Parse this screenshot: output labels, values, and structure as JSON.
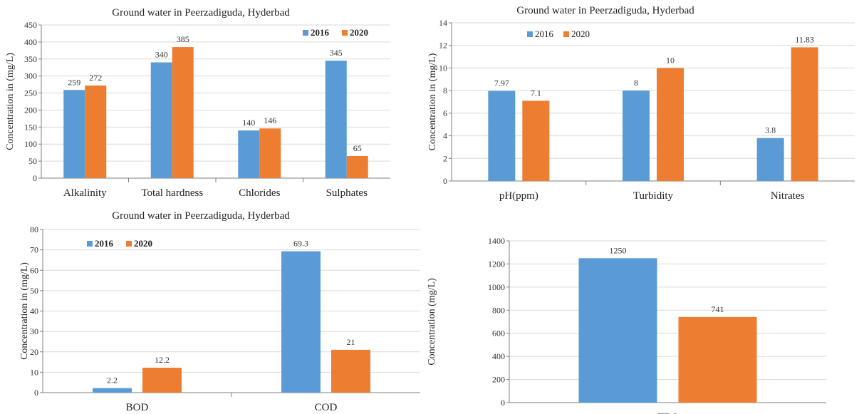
{
  "colors": {
    "s2016": "#5b9bd5",
    "s2020": "#ed7d31"
  },
  "chart_data": [
    {
      "type": "bar",
      "title": "Ground water in Peerzadiguda, Hyderbad",
      "ylabel": "Concentration in (mg/L)",
      "xlabel": "",
      "categories": [
        "Alkalinity",
        "Total hardness",
        "Chlorides",
        "Sulphates"
      ],
      "series": [
        {
          "name": "2016",
          "values": [
            259,
            340,
            140,
            345
          ]
        },
        {
          "name": "2020",
          "values": [
            272,
            385,
            146,
            65
          ]
        }
      ],
      "ylim": [
        0,
        450
      ],
      "yticks": [
        0,
        50,
        100,
        150,
        200,
        250,
        300,
        350,
        400,
        450
      ],
      "grid": true,
      "legend": "top-right",
      "legend_bold": true
    },
    {
      "type": "bar",
      "title": "Ground water in Peerzadiguda, Hyderbad",
      "ylabel": "Concentration in (mg/L)",
      "xlabel": "",
      "categories": [
        "pH(ppm)",
        "Turbidity",
        "Nitrates"
      ],
      "series": [
        {
          "name": "2016",
          "values": [
            7.97,
            8,
            3.8
          ]
        },
        {
          "name": "2020",
          "values": [
            7.1,
            10,
            11.83
          ]
        }
      ],
      "ylim": [
        0,
        14
      ],
      "yticks": [
        0,
        2,
        4,
        6,
        8,
        10,
        12,
        14
      ],
      "grid": true,
      "legend": "top-left",
      "legend_bold": false
    },
    {
      "type": "bar",
      "title": "Ground water in Peerzadiguda, Hyderbad",
      "ylabel": "Concentration in (mg/L)",
      "xlabel": "",
      "categories": [
        "BOD",
        "COD"
      ],
      "series": [
        {
          "name": "2016",
          "values": [
            2.2,
            69.3
          ]
        },
        {
          "name": "2020",
          "values": [
            12.2,
            21
          ]
        }
      ],
      "ylim": [
        0,
        80
      ],
      "yticks": [
        0,
        10,
        20,
        30,
        40,
        50,
        60,
        70,
        80
      ],
      "grid": true,
      "legend": "top-left",
      "legend_bold": true
    },
    {
      "type": "bar",
      "title": "",
      "ylabel": "Concentration (mg/L)",
      "xlabel": "",
      "categories": [
        "TDS"
      ],
      "series": [
        {
          "name": "",
          "values": [
            1250
          ]
        },
        {
          "name": "",
          "values": [
            741
          ]
        }
      ],
      "ylim": [
        0,
        1400
      ],
      "yticks": [
        0,
        200,
        400,
        600,
        800,
        1000,
        1200,
        1400
      ],
      "grid": true,
      "legend": "none",
      "legend_bold": false
    }
  ]
}
